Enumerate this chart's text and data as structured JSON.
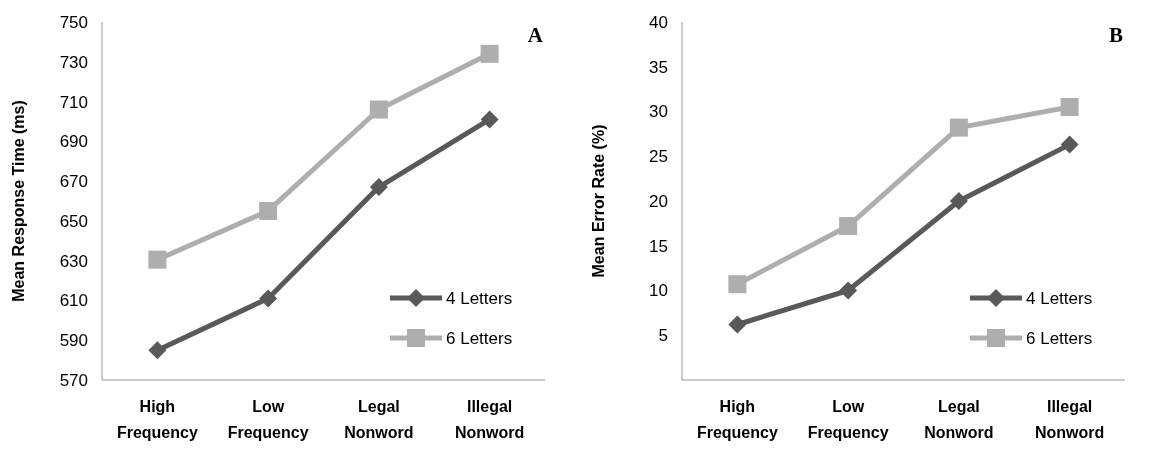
{
  "chart_data": [
    {
      "type": "line",
      "title": "A",
      "ylabel": "Mean Response Time (ms)",
      "categories": [
        "High Frequency",
        "Low Frequency",
        "Legal Nonword",
        "Illegal Nonword"
      ],
      "series": [
        {
          "name": "4 Letters",
          "color": "#595959",
          "marker": "diamond",
          "values": [
            585,
            611,
            667,
            701
          ]
        },
        {
          "name": "6 Letters",
          "color": "#aeaeae",
          "marker": "square",
          "values": [
            630.5,
            655,
            706,
            734
          ]
        }
      ],
      "ylim": [
        570,
        750
      ],
      "yticks": [
        570,
        590,
        610,
        630,
        650,
        670,
        690,
        710,
        730,
        750
      ],
      "legend": "right"
    },
    {
      "type": "line",
      "title": "B",
      "ylabel": "Mean Error Rate (%)",
      "categories": [
        "High Frequency",
        "Low Frequency",
        "Legal Nonword",
        "Illegal Nonword"
      ],
      "series": [
        {
          "name": "4 Letters",
          "color": "#595959",
          "marker": "diamond",
          "values": [
            6.2,
            10,
            20,
            26.3
          ]
        },
        {
          "name": "6 Letters",
          "color": "#aeaeae",
          "marker": "square",
          "values": [
            10.7,
            17.2,
            28.2,
            30.5
          ]
        }
      ],
      "ylim": [
        0,
        40
      ],
      "yticks": [
        5,
        10,
        15,
        20,
        25,
        30,
        35,
        40
      ],
      "legend": "right"
    }
  ]
}
